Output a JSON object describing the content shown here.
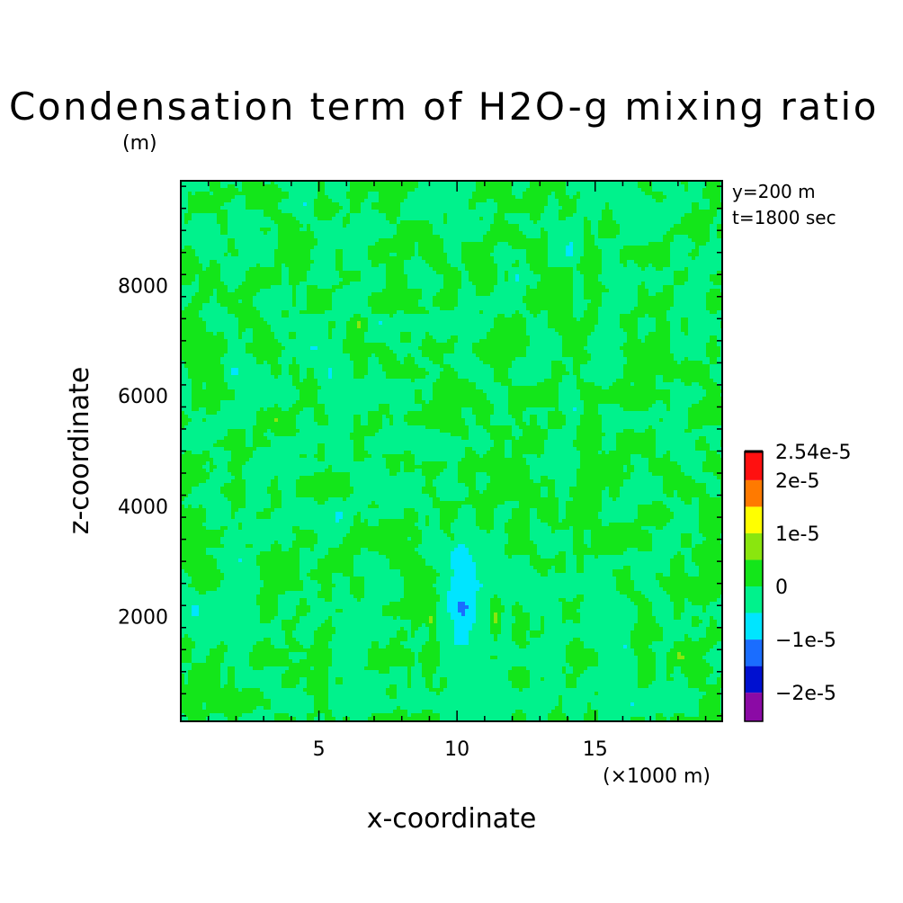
{
  "chart_data": {
    "type": "heatmap",
    "title": "Condensation term of H2O-g mixing ratio",
    "ylabel_unit": "(m)",
    "xlabel": "x-coordinate",
    "ylabel": "z-coordinate",
    "xunit": "(×1000 m)",
    "info_lines": [
      "y=200 m",
      "t=1800 sec"
    ],
    "xlim": [
      0,
      19.6
    ],
    "ylim": [
      100,
      9900
    ],
    "x_ticks": [
      5,
      10,
      15
    ],
    "x_tick_labels": [
      "5",
      "10",
      "15"
    ],
    "y_ticks": [
      2000,
      4000,
      6000,
      8000
    ],
    "y_tick_labels": [
      "2000",
      "4000",
      "6000",
      "8000"
    ],
    "colorbar": {
      "max_label": "2.54e-5",
      "tick_labels": [
        "2e-5",
        "1e-5",
        "0",
        "−1e-5",
        "−2e-5"
      ],
      "tick_values": [
        2e-05,
        1e-05,
        0,
        -1e-05,
        -2e-05
      ],
      "levels": [
        -2.54e-05,
        -2e-05,
        -1.5e-05,
        -1e-05,
        -5e-06,
        0,
        5e-06,
        1e-05,
        1.5e-05,
        2e-05,
        2.54e-05
      ],
      "colors": [
        "#8b0aa5",
        "#0010d0",
        "#1a6dff",
        "#00e5ff",
        "#00f28c",
        "#13e61a",
        "#8ae60e",
        "#ffff00",
        "#ff7a00",
        "#ff1010"
      ]
    },
    "features": [
      {
        "name": "negative core",
        "x": 10.2,
        "z": 1900,
        "value": -2.3e-05
      },
      {
        "name": "positive side lobe left",
        "x": 9.1,
        "z": 1900,
        "value": 1.2e-05
      },
      {
        "name": "positive side lobe right",
        "x": 11.4,
        "z": 1900,
        "value": 1.2e-05
      }
    ]
  }
}
